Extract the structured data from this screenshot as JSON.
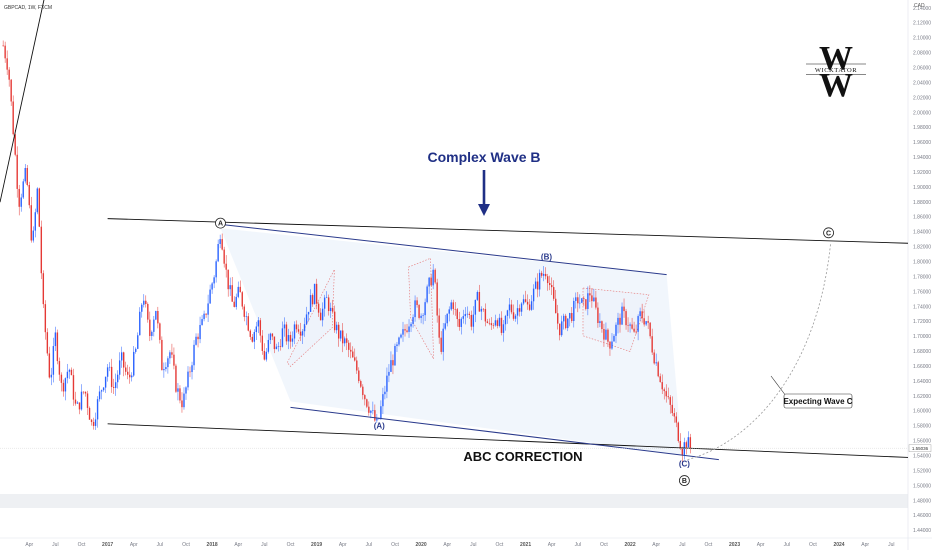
{
  "header": {
    "symbol": "GBPCAD, 1W, FXCM",
    "currency": "CAD"
  },
  "logo": {
    "mark": "W",
    "text": "WICKTATOR"
  },
  "current_price": "1.55036",
  "annotations": {
    "complex_wave_title": "Complex Wave B",
    "abc_title": "ABC CORRECTION",
    "expecting": "Expecting Wave C",
    "labels": [
      {
        "text": "A",
        "style": "circle",
        "t": 2018.08,
        "price": 1.852
      },
      {
        "text": "(A)",
        "style": "paren",
        "t": 2019.6,
        "price": 1.577
      },
      {
        "text": "(B)",
        "style": "paren",
        "t": 2021.2,
        "price": 1.803
      },
      {
        "text": "(C)",
        "style": "paren",
        "t": 2022.52,
        "price": 1.526
      },
      {
        "text": "B",
        "style": "circle",
        "t": 2022.52,
        "price": 1.507
      },
      {
        "text": "C",
        "style": "circle",
        "t": 2023.9,
        "price": 1.839
      }
    ]
  },
  "chart_data": {
    "type": "candlestick",
    "title": "",
    "xlabel": "",
    "ylabel": "",
    "x_tick_labels": [
      {
        "t": 2016.25,
        "label": "Apr"
      },
      {
        "t": 2016.5,
        "label": "Jul"
      },
      {
        "t": 2016.75,
        "label": "Oct"
      },
      {
        "t": 2017.0,
        "label": "2017"
      },
      {
        "t": 2017.25,
        "label": "Apr"
      },
      {
        "t": 2017.5,
        "label": "Jul"
      },
      {
        "t": 2017.75,
        "label": "Oct"
      },
      {
        "t": 2018.0,
        "label": "2018"
      },
      {
        "t": 2018.25,
        "label": "Apr"
      },
      {
        "t": 2018.5,
        "label": "Jul"
      },
      {
        "t": 2018.75,
        "label": "Oct"
      },
      {
        "t": 2019.0,
        "label": "2019"
      },
      {
        "t": 2019.25,
        "label": "Apr"
      },
      {
        "t": 2019.5,
        "label": "Jul"
      },
      {
        "t": 2019.75,
        "label": "Oct"
      },
      {
        "t": 2020.0,
        "label": "2020"
      },
      {
        "t": 2020.25,
        "label": "Apr"
      },
      {
        "t": 2020.5,
        "label": "Jul"
      },
      {
        "t": 2020.75,
        "label": "Oct"
      },
      {
        "t": 2021.0,
        "label": "2021"
      },
      {
        "t": 2021.25,
        "label": "Apr"
      },
      {
        "t": 2021.5,
        "label": "Jul"
      },
      {
        "t": 2021.75,
        "label": "Oct"
      },
      {
        "t": 2022.0,
        "label": "2022"
      },
      {
        "t": 2022.25,
        "label": "Apr"
      },
      {
        "t": 2022.5,
        "label": "Jul"
      },
      {
        "t": 2022.75,
        "label": "Oct"
      },
      {
        "t": 2023.0,
        "label": "2023"
      },
      {
        "t": 2023.25,
        "label": "Apr"
      },
      {
        "t": 2023.5,
        "label": "Jul"
      },
      {
        "t": 2023.75,
        "label": "Oct"
      },
      {
        "t": 2024.0,
        "label": "2024"
      },
      {
        "t": 2024.25,
        "label": "Apr"
      },
      {
        "t": 2024.5,
        "label": "Jul"
      }
    ],
    "y_tick_labels": [
      "2.14000",
      "2.12000",
      "2.10000",
      "2.08000",
      "2.06000",
      "2.04000",
      "2.02000",
      "2.00000",
      "1.98000",
      "1.96000",
      "1.94000",
      "1.92000",
      "1.90000",
      "1.88000",
      "1.86000",
      "1.84000",
      "1.82000",
      "1.80000",
      "1.78000",
      "1.76000",
      "1.74000",
      "1.72000",
      "1.70000",
      "1.68000",
      "1.66000",
      "1.64000",
      "1.62000",
      "1.60000",
      "1.58000",
      "1.56000",
      "1.54000",
      "1.52000",
      "1.50000",
      "1.48000",
      "1.46000",
      "1.44000"
    ],
    "ylim": [
      1.43,
      2.151
    ],
    "xlim": [
      2015.97,
      2024.66
    ],
    "price_path": [
      [
        2016.0,
        2.09
      ],
      [
        2016.05,
        2.06
      ],
      [
        2016.1,
        1.97
      ],
      [
        2016.15,
        1.88
      ],
      [
        2016.22,
        1.92
      ],
      [
        2016.28,
        1.82
      ],
      [
        2016.33,
        1.9
      ],
      [
        2016.38,
        1.74
      ],
      [
        2016.45,
        1.64
      ],
      [
        2016.5,
        1.7
      ],
      [
        2016.56,
        1.63
      ],
      [
        2016.63,
        1.66
      ],
      [
        2016.7,
        1.6
      ],
      [
        2016.78,
        1.63
      ],
      [
        2016.85,
        1.58
      ],
      [
        2016.92,
        1.62
      ],
      [
        2017.0,
        1.66
      ],
      [
        2017.06,
        1.63
      ],
      [
        2017.13,
        1.67
      ],
      [
        2017.2,
        1.64
      ],
      [
        2017.27,
        1.68
      ],
      [
        2017.34,
        1.76
      ],
      [
        2017.4,
        1.7
      ],
      [
        2017.46,
        1.74
      ],
      [
        2017.52,
        1.66
      ],
      [
        2017.6,
        1.68
      ],
      [
        2017.66,
        1.63
      ],
      [
        2017.72,
        1.61
      ],
      [
        2017.78,
        1.65
      ],
      [
        2017.85,
        1.7
      ],
      [
        2017.92,
        1.72
      ],
      [
        2017.98,
        1.76
      ],
      [
        2018.03,
        1.79
      ],
      [
        2018.08,
        1.845
      ],
      [
        2018.14,
        1.78
      ],
      [
        2018.2,
        1.74
      ],
      [
        2018.26,
        1.76
      ],
      [
        2018.32,
        1.73
      ],
      [
        2018.38,
        1.7
      ],
      [
        2018.44,
        1.72
      ],
      [
        2018.5,
        1.67
      ],
      [
        2018.56,
        1.7
      ],
      [
        2018.62,
        1.68
      ],
      [
        2018.68,
        1.71
      ],
      [
        2018.74,
        1.69
      ],
      [
        2018.8,
        1.72
      ],
      [
        2018.86,
        1.71
      ],
      [
        2018.92,
        1.74
      ],
      [
        2018.98,
        1.76
      ],
      [
        2019.04,
        1.73
      ],
      [
        2019.1,
        1.75
      ],
      [
        2019.16,
        1.72
      ],
      [
        2019.22,
        1.7
      ],
      [
        2019.28,
        1.69
      ],
      [
        2019.34,
        1.67
      ],
      [
        2019.4,
        1.65
      ],
      [
        2019.46,
        1.62
      ],
      [
        2019.52,
        1.6
      ],
      [
        2019.58,
        1.58
      ],
      [
        2019.64,
        1.62
      ],
      [
        2019.7,
        1.66
      ],
      [
        2019.76,
        1.68
      ],
      [
        2019.82,
        1.7
      ],
      [
        2019.88,
        1.72
      ],
      [
        2019.94,
        1.74
      ],
      [
        2020.0,
        1.73
      ],
      [
        2020.06,
        1.76
      ],
      [
        2020.12,
        1.79
      ],
      [
        2020.18,
        1.68
      ],
      [
        2020.24,
        1.72
      ],
      [
        2020.3,
        1.75
      ],
      [
        2020.36,
        1.71
      ],
      [
        2020.42,
        1.74
      ],
      [
        2020.48,
        1.72
      ],
      [
        2020.54,
        1.75
      ],
      [
        2020.6,
        1.73
      ],
      [
        2020.66,
        1.71
      ],
      [
        2020.72,
        1.73
      ],
      [
        2020.78,
        1.7
      ],
      [
        2020.84,
        1.74
      ],
      [
        2020.9,
        1.73
      ],
      [
        2020.96,
        1.75
      ],
      [
        2021.02,
        1.74
      ],
      [
        2021.08,
        1.76
      ],
      [
        2021.14,
        1.78
      ],
      [
        2021.2,
        1.79
      ],
      [
        2021.26,
        1.75
      ],
      [
        2021.32,
        1.71
      ],
      [
        2021.38,
        1.72
      ],
      [
        2021.44,
        1.73
      ],
      [
        2021.5,
        1.75
      ],
      [
        2021.56,
        1.74
      ],
      [
        2021.62,
        1.76
      ],
      [
        2021.68,
        1.73
      ],
      [
        2021.74,
        1.71
      ],
      [
        2021.8,
        1.69
      ],
      [
        2021.86,
        1.71
      ],
      [
        2021.92,
        1.73
      ],
      [
        2021.98,
        1.72
      ],
      [
        2022.04,
        1.7
      ],
      [
        2022.1,
        1.73
      ],
      [
        2022.16,
        1.72
      ],
      [
        2022.22,
        1.68
      ],
      [
        2022.28,
        1.65
      ],
      [
        2022.34,
        1.62
      ],
      [
        2022.4,
        1.6
      ],
      [
        2022.46,
        1.57
      ],
      [
        2022.5,
        1.55
      ],
      [
        2022.54,
        1.56
      ],
      [
        2022.58,
        1.55
      ]
    ]
  }
}
